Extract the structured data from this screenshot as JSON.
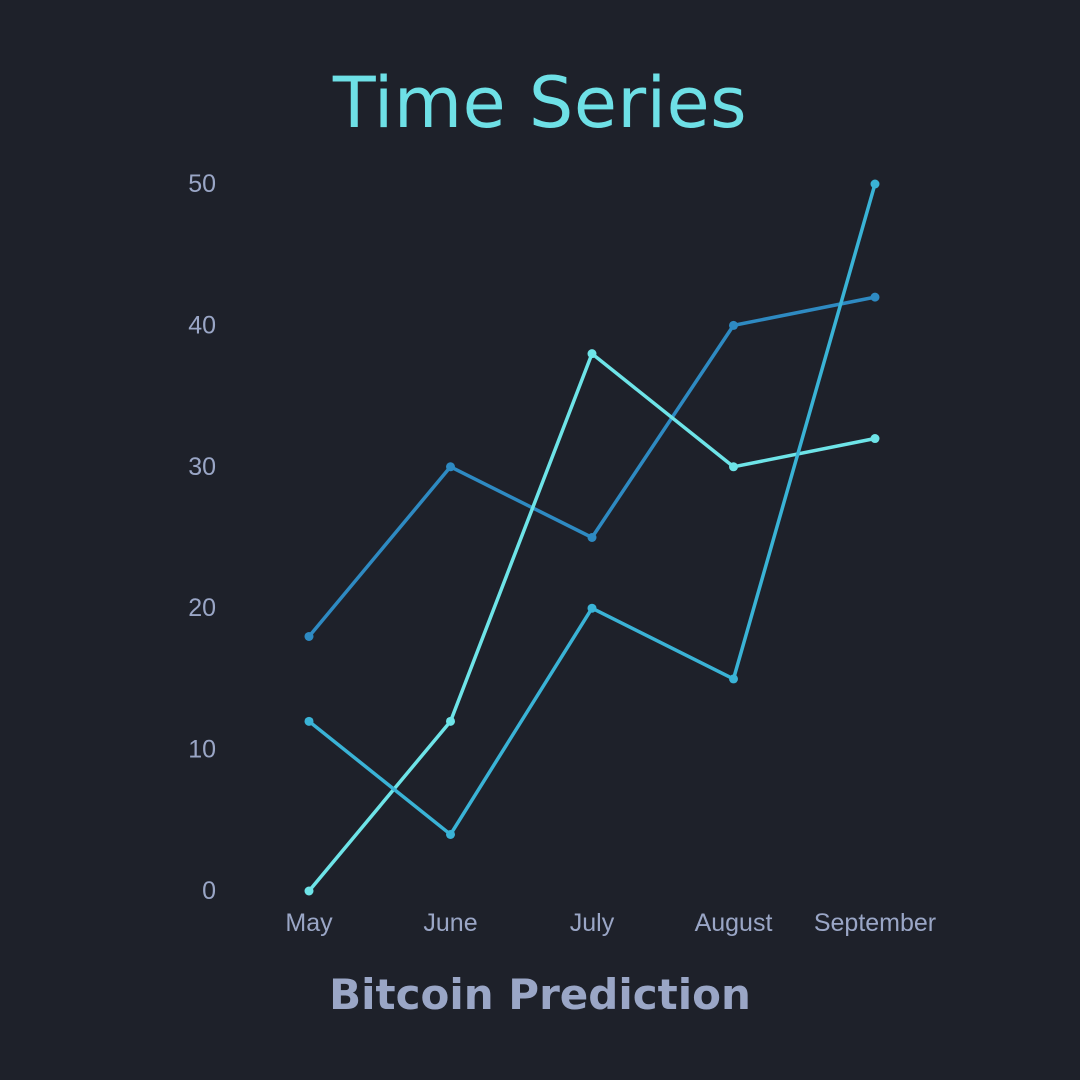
{
  "colors": {
    "background": "#1e212a",
    "title": "#6ee0e6",
    "axis_text": "#9aa6c6",
    "series": [
      "#2e8ac2",
      "#6ee4e8",
      "#3ab3d6"
    ]
  },
  "chart_data": {
    "type": "line",
    "title": "Time Series",
    "xlabel": "Bitcoin Prediction",
    "ylabel": "",
    "categories": [
      "May",
      "June",
      "July",
      "August",
      "September"
    ],
    "ylim": [
      0,
      50
    ],
    "yticks": [
      0,
      10,
      20,
      30,
      40,
      50
    ],
    "grid": false,
    "legend": "none",
    "series": [
      {
        "values": [
          18,
          30,
          25,
          40,
          42
        ]
      },
      {
        "values": [
          0,
          12,
          38,
          30,
          32
        ]
      },
      {
        "values": [
          12,
          4,
          20,
          15,
          50
        ]
      }
    ]
  }
}
